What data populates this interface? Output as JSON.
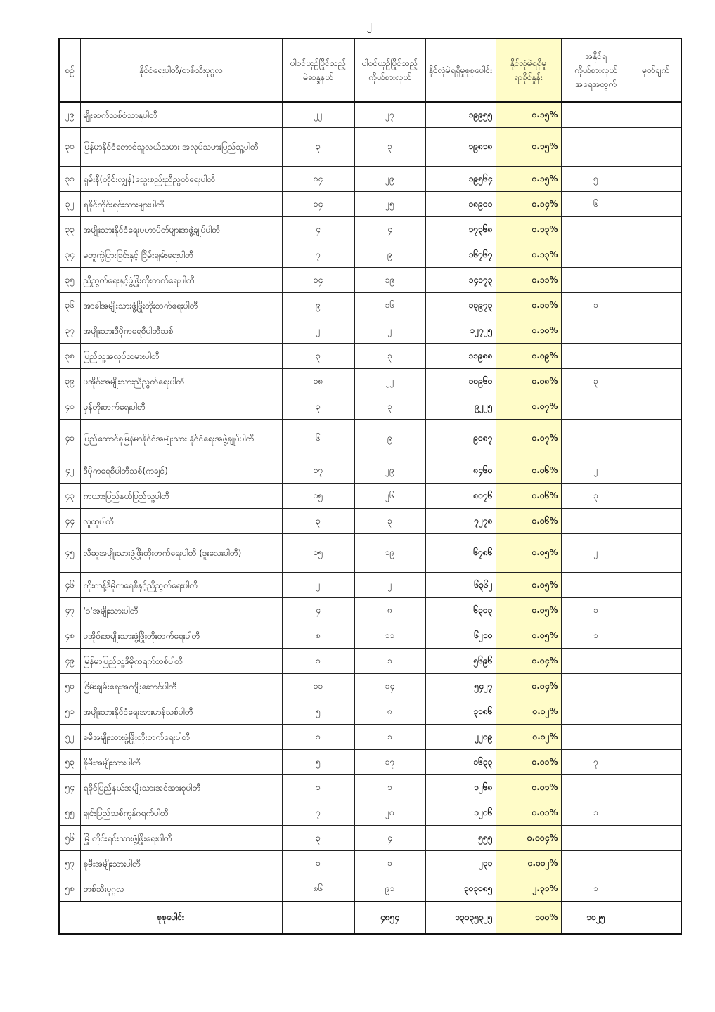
{
  "page_number": "၂",
  "colors": {
    "highlight_column": "#fffcc8",
    "border": "#111111"
  },
  "headers": {
    "no": "စဉ်",
    "party": "နိုင်ငံရေးပါတီ/တစ်သီးပုဂ္ဂလ",
    "constituencies": "ပါဝင်ယှဉ်ပြိုင်သည့်မဲဆန္ဒနယ်",
    "candidates": "ပါဝင်ယှဉ်ပြိုင်သည့်ကိုယ်စားလှယ်",
    "votes": "နိုင်လုံမဲရရှိမှုစုစုပေါင်း",
    "percent": "နိုင်လုံမဲရရှိမှုရာခိုင်နှုန်း",
    "elected": "အနိုင်ရကိုယ်စားလှယ်အရေအတွက်",
    "remarks": "မှတ်ချက်"
  },
  "rows": [
    {
      "no": "၂၉",
      "party": "မျိုးဆက်သစ်ဝံသာနုပါတီ",
      "constituencies": "၂၂",
      "candidates": "၂၇",
      "votes": "၁၉၉၅၅",
      "percent": "၀.၁၅%",
      "elected": "",
      "remarks": ""
    },
    {
      "no": "၃၀",
      "party": "မြန်မာနိုင်ငံတောင်သူလယ်သမား အလုပ်သမားပြည်သူ့ပါတီ",
      "constituencies": "၃",
      "candidates": "၃",
      "votes": "၁၉၈၁၈",
      "percent": "၀.၁၅%",
      "elected": "",
      "remarks": "",
      "tall": true
    },
    {
      "no": "၃၁",
      "party": "ရှမ်းနီ(တိုင်းလျှန်)သွေးစည်းညီညွတ်ရေးပါတီ",
      "constituencies": "၁၄",
      "candidates": "၂၉",
      "votes": "၁၉၅၆၄",
      "percent": "၀.၁၅%",
      "elected": "၅",
      "remarks": ""
    },
    {
      "no": "၃၂",
      "party": "ရခိုင်တိုင်းရင်းသားများပါတီ",
      "constituencies": "၁၄",
      "candidates": "၂၅",
      "votes": "၁၈၉၀၁",
      "percent": "၀.၁၄%",
      "elected": "၆",
      "remarks": ""
    },
    {
      "no": "၃၃",
      "party": "အမျိုးသားနိုင်ငံရေးမဟာမိတ်များအဖွဲ့ချုပ်ပါတီ",
      "constituencies": "၄",
      "candidates": "၄",
      "votes": "၁၇၃၆၈",
      "percent": "၀.၁၃%",
      "elected": "",
      "remarks": ""
    },
    {
      "no": "၃၄",
      "party": "မတူကွဲပြားခြင်းနှင့် ငြိမ်းချမ်းရေးပါတီ",
      "constituencies": "၇",
      "candidates": "၉",
      "votes": "၁၆၇၆၇",
      "percent": "၀.၁၃%",
      "elected": "",
      "remarks": ""
    },
    {
      "no": "၃၅",
      "party": "ညီညွတ်ရေးနှင့်ဖွံ့ဖြိုးတိုးတက်ရေးပါတီ",
      "constituencies": "၁၄",
      "candidates": "၁၉",
      "votes": "၁၄၁၇၃",
      "percent": "၀.၁၁%",
      "elected": "",
      "remarks": ""
    },
    {
      "no": "၃၆",
      "party": "အာခါအမျိုးသားဖွံ့ဖြိုးတိုးတက်ရေးပါတီ",
      "constituencies": "၉",
      "candidates": "၁၆",
      "votes": "၁၃၉၇၃",
      "percent": "၀.၁၁%",
      "elected": "၁",
      "remarks": ""
    },
    {
      "no": "၃၇",
      "party": "အမျိုးသားဒီမိုကရေစီပါတီသစ်",
      "constituencies": "၂",
      "candidates": "၂",
      "votes": "၁၂၇၂၅",
      "percent": "၀.၁၀%",
      "elected": "",
      "remarks": ""
    },
    {
      "no": "၃၈",
      "party": "ပြည်သူ့အလုပ်သမားပါတီ",
      "constituencies": "၃",
      "candidates": "၃",
      "votes": "၁၁၉၈၈",
      "percent": "၀.၀၉%",
      "elected": "",
      "remarks": ""
    },
    {
      "no": "၃၉",
      "party": "ပအိုဝ်းအမျိုးသားညီညွတ်ရေးပါတီ",
      "constituencies": "၁၈",
      "candidates": "၂၂",
      "votes": "၁၀၉၆၀",
      "percent": "၀.၀၈%",
      "elected": "၃",
      "remarks": ""
    },
    {
      "no": "၄၀",
      "party": "မှန်တိုးတက်ရေးပါတီ",
      "constituencies": "၃",
      "candidates": "၃",
      "votes": "၉၂၂၅",
      "percent": "၀.၀၇%",
      "elected": "",
      "remarks": ""
    },
    {
      "no": "၄၁",
      "party": "ပြည်ထောင်စုမြန်မာနိုင်ငံအမျိုးသား နိုင်ငံရေးအဖွဲ့ချုပ်ပါတီ",
      "constituencies": "၆",
      "candidates": "၉",
      "votes": "၉၀၈၇",
      "percent": "၀.၀၇%",
      "elected": "",
      "remarks": "",
      "tall": true
    },
    {
      "no": "၄၂",
      "party": "ဒီမိုကရေစီပါတီသစ်(ကချင်)",
      "constituencies": "၁၇",
      "candidates": "၂၉",
      "votes": "၈၄၆၀",
      "percent": "၀.၀၆%",
      "elected": "၂",
      "remarks": ""
    },
    {
      "no": "၄၃",
      "party": "ကယားပြည်နယ်ပြည်သူ့ပါတီ",
      "constituencies": "၁၅",
      "candidates": "၂၆",
      "votes": "၈၀၇၆",
      "percent": "၀.၀၆%",
      "elected": "၃",
      "remarks": ""
    },
    {
      "no": "၄၄",
      "party": "လူထုပါတီ",
      "constituencies": "၃",
      "candidates": "၃",
      "votes": "၇၂၇၈",
      "percent": "၀.၀၆%",
      "elected": "",
      "remarks": ""
    },
    {
      "no": "၄၅",
      "party": "လီဆူအမျိုးသားဖွံ့ဖြိုးတိုးတက်ရေးပါတီ (ဒူးလေးပါတီ)",
      "constituencies": "၁၅",
      "candidates": "၁၉",
      "votes": "၆၇၈၆",
      "percent": "၀.၀၅%",
      "elected": "၂",
      "remarks": "",
      "tall": true
    },
    {
      "no": "၄၆",
      "party": "ကိုးကန့်ဒီမိုကရေစီနှင့်ညီညွတ်ရေးပါတီ",
      "constituencies": "၂",
      "candidates": "၂",
      "votes": "၆၃၆၂",
      "percent": "၀.၀၅%",
      "elected": "",
      "remarks": ""
    },
    {
      "no": "၄၇",
      "party": "'ဝ'အမျိုးသားပါတီ",
      "constituencies": "၄",
      "candidates": "၈",
      "votes": "၆၃၀၃",
      "percent": "၀.၀၅%",
      "elected": "၁",
      "remarks": ""
    },
    {
      "no": "၄၈",
      "party": "ပအိုဝ်းအမျိုးသားဖွံ့ဖြိုးတိုးတက်ရေးပါတီ",
      "constituencies": "၈",
      "candidates": "၁၁",
      "votes": "၆၂၁၀",
      "percent": "၀.၀၅%",
      "elected": "၁",
      "remarks": ""
    },
    {
      "no": "၄၉",
      "party": "မြန်မာပြည်သူ့ဒီမိုကရက်တစ်ပါတီ",
      "constituencies": "၁",
      "candidates": "၁",
      "votes": "၅၆၉၆",
      "percent": "၀.၀၄%",
      "elected": "",
      "remarks": ""
    },
    {
      "no": "၅၀",
      "party": "ငြိမ်းချမ်းရေးအကျိုးဆောင်ပါတီ",
      "constituencies": "၁၁",
      "candidates": "၁၄",
      "votes": "၅၄၂၇",
      "percent": "၀.၀၄%",
      "elected": "",
      "remarks": ""
    },
    {
      "no": "၅၁",
      "party": "အမျိုးသားနိုင်ငံရေးအားမာန်သစ်ပါတီ",
      "constituencies": "၅",
      "candidates": "၈",
      "votes": "၃၁၈၆",
      "percent": "၀.၀၂%",
      "elected": "",
      "remarks": ""
    },
    {
      "no": "၅၂",
      "party": "ခမီအမျိုးသားဖွံ့ဖြိုးတိုးတက်ရေးပါတီ",
      "constituencies": "၁",
      "candidates": "၁",
      "votes": "၂၂၀၉",
      "percent": "၀.၀၂%",
      "elected": "",
      "remarks": ""
    },
    {
      "no": "၅၃",
      "party": "ခိုမီးအမျိုးသားပါတီ",
      "constituencies": "၅",
      "candidates": "၁၇",
      "votes": "၁၆၃၃",
      "percent": "၀.၀၁%",
      "elected": "၇",
      "remarks": ""
    },
    {
      "no": "၅၄",
      "party": "ရခိုင်ပြည်နယ်အမျိုးသားအင်အားစုပါတီ",
      "constituencies": "၁",
      "candidates": "၁",
      "votes": "၁၂၆၈",
      "percent": "၀.၀၁%",
      "elected": "",
      "remarks": ""
    },
    {
      "no": "၅၅",
      "party": "ချင်းပြည်သစ်ကွန်ဂရက်ပါတီ",
      "constituencies": "၇",
      "candidates": "၂၀",
      "votes": "၁၂၀၆",
      "percent": "၀.၀၁%",
      "elected": "၁",
      "remarks": ""
    },
    {
      "no": "၅၆",
      "party": "မြို တိုင်းရင်းသားဖွံ့ဖြိုးရေးပါတီ",
      "constituencies": "၃",
      "candidates": "၄",
      "votes": "၅၅၅",
      "percent": "၀.၀၀၄%",
      "elected": "",
      "remarks": ""
    },
    {
      "no": "၅၇",
      "party": "ခုမီးအမျိုးသားပါတီ",
      "constituencies": "၁",
      "candidates": "၁",
      "votes": "၂၃၁",
      "percent": "၀.၀၀၂%",
      "elected": "",
      "remarks": ""
    },
    {
      "no": "၅၈",
      "party": "တစ်သီးပုဂ္ဂလ",
      "constituencies": "၈၆",
      "candidates": "၉၁",
      "votes": "၃၀၃၀၈၅",
      "percent": "၂.၃၁%",
      "elected": "၁",
      "remarks": ""
    }
  ],
  "total": {
    "label": "စုစုပေါင်း",
    "constituencies": "",
    "candidates": "၄၈၅၄",
    "votes": "၁၃၁၃၅၃၂၅",
    "percent": "၁၀၀%",
    "elected": "၁၀၂၅",
    "remarks": ""
  }
}
